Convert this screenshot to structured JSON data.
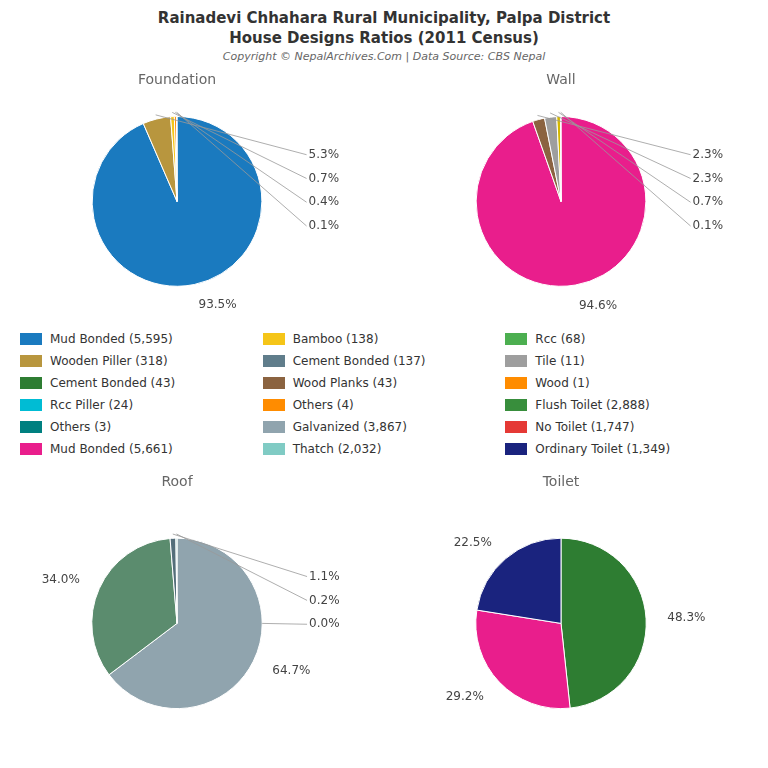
{
  "title": [
    "Rainadevi Chhahara Rural Municipality, Palpa District",
    "House Designs Ratios (2011 Census)"
  ],
  "subtitle": "Copyright © NepalArchives.Com | Data Source: CBS Nepal",
  "legend_items": [
    {
      "name": "Mud Bonded (5,595)",
      "color": "#1a7abf"
    },
    {
      "name": "Wooden Piller (318)",
      "color": "#b8963e"
    },
    {
      "name": "Cement Bonded (43)",
      "color": "#2e7d32"
    },
    {
      "name": "Rcc Piller (24)",
      "color": "#00bcd4"
    },
    {
      "name": "Others (3)",
      "color": "#008080"
    },
    {
      "name": "Mud Bonded (5,661)",
      "color": "#e91e8c"
    },
    {
      "name": "Bamboo (138)",
      "color": "#f5c518"
    },
    {
      "name": "Cement Bonded (137)",
      "color": "#607d8b"
    },
    {
      "name": "Wood Planks (43)",
      "color": "#8b6340"
    },
    {
      "name": "Others (4)",
      "color": "#ff8c00"
    },
    {
      "name": "Galvanized (3,867)",
      "color": "#90a4ae"
    },
    {
      "name": "Thatch (2,032)",
      "color": "#80cbc4"
    },
    {
      "name": "Rcc (68)",
      "color": "#4caf50"
    },
    {
      "name": "Tile (11)",
      "color": "#9e9e9e"
    },
    {
      "name": "Wood (1)",
      "color": "#ff8c00"
    },
    {
      "name": "Flush Toilet (2,888)",
      "color": "#388e3c"
    },
    {
      "name": "No Toilet (1,747)",
      "color": "#e53935"
    },
    {
      "name": "Ordinary Toilet (1,349)",
      "color": "#1a237e"
    }
  ],
  "chart_data": [
    {
      "type": "pie",
      "title": "Foundation",
      "values": [
        93.5,
        5.3,
        0.7,
        0.4,
        0.1
      ],
      "value_labels": [
        "93.5%",
        "5.3%",
        "0.7%",
        "0.4%",
        "0.1%"
      ],
      "colors": [
        "#1a7abf",
        "#b8963e",
        "#f5c518",
        "#ff8c00",
        "#00bcd4"
      ],
      "data_labels": true
    },
    {
      "type": "pie",
      "title": "Wall",
      "values": [
        94.6,
        2.3,
        2.3,
        0.7,
        0.1
      ],
      "value_labels": [
        "94.6%",
        "2.3%",
        "2.3%",
        "0.7%",
        "0.1%"
      ],
      "colors": [
        "#e91e8c",
        "#8b6340",
        "#9e9e9e",
        "#d4b800",
        "#00bcd4"
      ],
      "data_labels": true
    },
    {
      "type": "pie",
      "title": "Roof",
      "values": [
        64.7,
        34.0,
        1.1,
        0.2,
        0.0
      ],
      "value_labels": [
        "64.7%",
        "34.0%",
        "1.1%",
        "0.2%",
        "0.0%"
      ],
      "colors": [
        "#90a4ae",
        "#5b8c6e",
        "#546e7a",
        "#80cbc4",
        "#4caf50"
      ],
      "data_labels": true
    },
    {
      "type": "pie",
      "title": "Toilet",
      "values": [
        48.3,
        29.2,
        22.5
      ],
      "value_labels": [
        "48.3%",
        "29.2%",
        "22.5%"
      ],
      "colors": [
        "#2e7d32",
        "#e91e8c",
        "#1a237e"
      ],
      "data_labels": true
    }
  ]
}
